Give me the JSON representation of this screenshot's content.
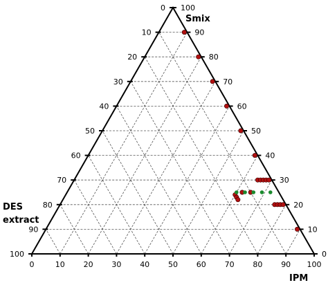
{
  "chart_data": {
    "type": "scatter",
    "subtype": "ternary",
    "axes": {
      "top": {
        "label": "Smix"
      },
      "left": {
        "label": "DES extract"
      },
      "right": {
        "label": "IPM"
      }
    },
    "range": [
      0,
      100
    ],
    "grid_step": 10,
    "tick_labels": [
      "0",
      "10",
      "20",
      "30",
      "40",
      "50",
      "60",
      "70",
      "80",
      "90",
      "100"
    ],
    "grid": true,
    "colors": {
      "frame": "#000000",
      "grid": "#555555",
      "red": "#b01010",
      "green": "#1a8a2e"
    },
    "series": [
      {
        "color": "red",
        "points": [
          {
            "smix": 90,
            "des": 1,
            "ipm": 9
          },
          {
            "smix": 80,
            "des": 1,
            "ipm": 19
          },
          {
            "smix": 70,
            "des": 1,
            "ipm": 29
          },
          {
            "smix": 60,
            "des": 1,
            "ipm": 39
          },
          {
            "smix": 50,
            "des": 1,
            "ipm": 49
          },
          {
            "smix": 40,
            "des": 1,
            "ipm": 59
          },
          {
            "smix": 30,
            "des": 5,
            "ipm": 65
          },
          {
            "smix": 30,
            "des": 4,
            "ipm": 66
          },
          {
            "smix": 30,
            "des": 3,
            "ipm": 67
          },
          {
            "smix": 30,
            "des": 2,
            "ipm": 68
          },
          {
            "smix": 30,
            "des": 1,
            "ipm": 69
          },
          {
            "smix": 25,
            "des": 10,
            "ipm": 65
          },
          {
            "smix": 25,
            "des": 13,
            "ipm": 62
          },
          {
            "smix": 24,
            "des": 16,
            "ipm": 60
          },
          {
            "smix": 23,
            "des": 16,
            "ipm": 61
          },
          {
            "smix": 22,
            "des": 16,
            "ipm": 62
          },
          {
            "smix": 20,
            "des": 4,
            "ipm": 76
          },
          {
            "smix": 20,
            "des": 3,
            "ipm": 77
          },
          {
            "smix": 20,
            "des": 2,
            "ipm": 78
          },
          {
            "smix": 20,
            "des": 1,
            "ipm": 79
          },
          {
            "smix": 10,
            "des": 1,
            "ipm": 89
          }
        ]
      },
      {
        "color": "green",
        "points": [
          {
            "smix": 25,
            "des": 15,
            "ipm": 60
          },
          {
            "smix": 25,
            "des": 12,
            "ipm": 63
          },
          {
            "smix": 25,
            "des": 9,
            "ipm": 66
          },
          {
            "smix": 25,
            "des": 6,
            "ipm": 69
          },
          {
            "smix": 25,
            "des": 3,
            "ipm": 72
          }
        ]
      }
    ]
  }
}
